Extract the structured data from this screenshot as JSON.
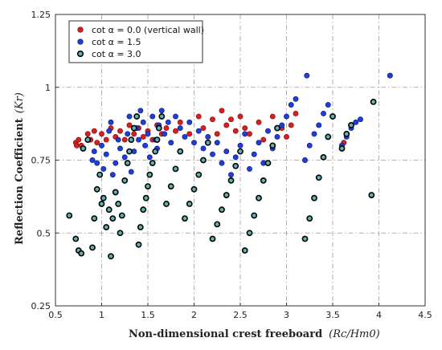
{
  "chart_data": {
    "type": "scatter",
    "xlabel": "Non-dimensional crest freeboard",
    "xlabel_symbol": "(Rc/Hm0)",
    "ylabel": "Reflection Coefficient",
    "ylabel_symbol": "(Kr)",
    "xlim": [
      0.5,
      4.5
    ],
    "ylim": [
      0.25,
      1.25
    ],
    "xticks": [
      "0.5",
      "1",
      "1.5",
      "2",
      "2.5",
      "3",
      "3.5",
      "4",
      "4.5"
    ],
    "yticks": [
      "0.25",
      "0.5",
      "0.75",
      "1",
      "1.25"
    ],
    "grid": true,
    "legend_position": "top-left",
    "series": [
      {
        "name": "cot α = 0.0 (vertical wall)",
        "color": "#d62020",
        "points": [
          [
            0.72,
            0.81
          ],
          [
            0.73,
            0.8
          ],
          [
            0.75,
            0.82
          ],
          [
            0.78,
            0.8
          ],
          [
            0.85,
            0.84
          ],
          [
            0.88,
            0.82
          ],
          [
            0.92,
            0.85
          ],
          [
            0.95,
            0.81
          ],
          [
            1.0,
            0.84
          ],
          [
            1.05,
            0.82
          ],
          [
            1.1,
            0.86
          ],
          [
            1.15,
            0.83
          ],
          [
            1.2,
            0.85
          ],
          [
            1.25,
            0.82
          ],
          [
            1.3,
            0.87
          ],
          [
            1.35,
            0.84
          ],
          [
            1.4,
            0.86
          ],
          [
            1.45,
            0.83
          ],
          [
            1.5,
            0.85
          ],
          [
            1.55,
            0.82
          ],
          [
            1.6,
            0.87
          ],
          [
            1.65,
            0.84
          ],
          [
            1.7,
            0.86
          ],
          [
            1.8,
            0.85
          ],
          [
            1.85,
            0.88
          ],
          [
            1.95,
            0.84
          ],
          [
            2.05,
            0.9
          ],
          [
            2.1,
            0.86
          ],
          [
            2.2,
            0.89
          ],
          [
            2.25,
            0.84
          ],
          [
            2.3,
            0.92
          ],
          [
            2.35,
            0.87
          ],
          [
            2.4,
            0.89
          ],
          [
            2.45,
            0.85
          ],
          [
            2.5,
            0.9
          ],
          [
            2.55,
            0.86
          ],
          [
            2.6,
            0.84
          ],
          [
            2.7,
            0.88
          ],
          [
            2.75,
            0.82
          ],
          [
            2.85,
            0.9
          ],
          [
            2.95,
            0.86
          ],
          [
            3.0,
            0.83
          ],
          [
            3.05,
            0.87
          ],
          [
            3.1,
            0.91
          ],
          [
            3.6,
            0.8
          ],
          [
            3.62,
            0.81
          ],
          [
            4.12,
            1.04
          ]
        ]
      },
      {
        "name": "cot α = 1.5",
        "color": "#1f3fd8",
        "points": [
          [
            0.9,
            0.75
          ],
          [
            0.92,
            0.78
          ],
          [
            0.95,
            0.74
          ],
          [
            1.0,
            0.8
          ],
          [
            1.02,
            0.72
          ],
          [
            1.05,
            0.77
          ],
          [
            1.08,
            0.85
          ],
          [
            1.1,
            0.88
          ],
          [
            1.12,
            0.7
          ],
          [
            1.15,
            0.74
          ],
          [
            1.18,
            0.82
          ],
          [
            1.2,
            0.79
          ],
          [
            1.25,
            0.76
          ],
          [
            1.28,
            0.84
          ],
          [
            1.3,
            0.9
          ],
          [
            1.32,
            0.71
          ],
          [
            1.35,
            0.78
          ],
          [
            1.38,
            0.86
          ],
          [
            1.4,
            0.82
          ],
          [
            1.42,
            0.92
          ],
          [
            1.45,
            0.88
          ],
          [
            1.47,
            0.8
          ],
          [
            1.5,
            0.84
          ],
          [
            1.52,
            0.76
          ],
          [
            1.55,
            0.9
          ],
          [
            1.58,
            0.82
          ],
          [
            1.6,
            0.79
          ],
          [
            1.62,
            0.87
          ],
          [
            1.65,
            0.92
          ],
          [
            1.68,
            0.84
          ],
          [
            1.72,
            0.88
          ],
          [
            1.75,
            0.81
          ],
          [
            1.8,
            0.9
          ],
          [
            1.85,
            0.86
          ],
          [
            1.9,
            0.83
          ],
          [
            1.95,
            0.88
          ],
          [
            2.0,
            0.81
          ],
          [
            2.05,
            0.85
          ],
          [
            2.1,
            0.79
          ],
          [
            2.15,
            0.83
          ],
          [
            2.2,
            0.77
          ],
          [
            2.25,
            0.81
          ],
          [
            2.3,
            0.74
          ],
          [
            2.35,
            0.78
          ],
          [
            2.4,
            0.7
          ],
          [
            2.45,
            0.76
          ],
          [
            2.5,
            0.8
          ],
          [
            2.55,
            0.84
          ],
          [
            2.6,
            0.72
          ],
          [
            2.65,
            0.77
          ],
          [
            2.7,
            0.81
          ],
          [
            2.75,
            0.74
          ],
          [
            2.8,
            0.85
          ],
          [
            2.85,
            0.79
          ],
          [
            2.9,
            0.83
          ],
          [
            2.95,
            0.87
          ],
          [
            3.0,
            0.9
          ],
          [
            3.05,
            0.94
          ],
          [
            3.1,
            0.96
          ],
          [
            3.2,
            0.75
          ],
          [
            3.22,
            1.04
          ],
          [
            3.25,
            0.8
          ],
          [
            3.3,
            0.84
          ],
          [
            3.35,
            0.87
          ],
          [
            3.4,
            0.91
          ],
          [
            3.45,
            0.94
          ],
          [
            3.6,
            0.8
          ],
          [
            3.65,
            0.83
          ],
          [
            3.7,
            0.86
          ],
          [
            3.75,
            0.88
          ],
          [
            3.8,
            0.89
          ],
          [
            4.12,
            1.04
          ]
        ]
      },
      {
        "name": "cot α = 3.0",
        "color": "#0a3a3a",
        "points": [
          [
            0.65,
            0.56
          ],
          [
            0.72,
            0.48
          ],
          [
            0.75,
            0.44
          ],
          [
            0.78,
            0.43
          ],
          [
            0.8,
            0.79
          ],
          [
            0.85,
            0.82
          ],
          [
            0.9,
            0.45
          ],
          [
            0.92,
            0.55
          ],
          [
            0.95,
            0.65
          ],
          [
            0.98,
            0.7
          ],
          [
            1.0,
            0.6
          ],
          [
            1.02,
            0.62
          ],
          [
            1.05,
            0.52
          ],
          [
            1.08,
            0.58
          ],
          [
            1.1,
            0.42
          ],
          [
            1.12,
            0.55
          ],
          [
            1.15,
            0.64
          ],
          [
            1.18,
            0.6
          ],
          [
            1.2,
            0.5
          ],
          [
            1.22,
            0.56
          ],
          [
            1.25,
            0.68
          ],
          [
            1.28,
            0.74
          ],
          [
            1.3,
            0.78
          ],
          [
            1.32,
            0.82
          ],
          [
            1.35,
            0.86
          ],
          [
            1.38,
            0.9
          ],
          [
            1.4,
            0.46
          ],
          [
            1.42,
            0.52
          ],
          [
            1.45,
            0.58
          ],
          [
            1.48,
            0.62
          ],
          [
            1.5,
            0.66
          ],
          [
            1.52,
            0.7
          ],
          [
            1.55,
            0.74
          ],
          [
            1.58,
            0.78
          ],
          [
            1.6,
            0.82
          ],
          [
            1.62,
            0.86
          ],
          [
            1.65,
            0.9
          ],
          [
            1.7,
            0.6
          ],
          [
            1.75,
            0.66
          ],
          [
            1.8,
            0.72
          ],
          [
            1.85,
            0.78
          ],
          [
            1.9,
            0.55
          ],
          [
            1.95,
            0.6
          ],
          [
            2.0,
            0.65
          ],
          [
            2.05,
            0.7
          ],
          [
            2.1,
            0.75
          ],
          [
            2.15,
            0.81
          ],
          [
            2.2,
            0.48
          ],
          [
            2.25,
            0.53
          ],
          [
            2.3,
            0.58
          ],
          [
            2.35,
            0.63
          ],
          [
            2.4,
            0.68
          ],
          [
            2.45,
            0.73
          ],
          [
            2.5,
            0.78
          ],
          [
            2.55,
            0.44
          ],
          [
            2.6,
            0.5
          ],
          [
            2.65,
            0.56
          ],
          [
            2.7,
            0.62
          ],
          [
            2.75,
            0.68
          ],
          [
            2.8,
            0.74
          ],
          [
            2.85,
            0.8
          ],
          [
            2.9,
            0.86
          ],
          [
            3.2,
            0.48
          ],
          [
            3.25,
            0.55
          ],
          [
            3.3,
            0.62
          ],
          [
            3.35,
            0.69
          ],
          [
            3.4,
            0.76
          ],
          [
            3.45,
            0.83
          ],
          [
            3.5,
            0.9
          ],
          [
            3.6,
            0.79
          ],
          [
            3.65,
            0.84
          ],
          [
            3.7,
            0.87
          ],
          [
            3.92,
            0.63
          ],
          [
            3.94,
            0.95
          ]
        ]
      }
    ]
  }
}
